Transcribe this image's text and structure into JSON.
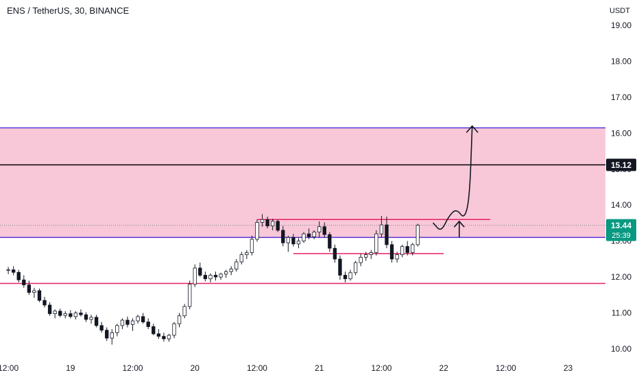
{
  "header": {
    "title": "ENS / TetherUS, 30, BINANCE"
  },
  "chart_data": {
    "type": "candlestick",
    "y_axis": {
      "unit": "USDT",
      "ticks": [
        10.0,
        11.0,
        12.0,
        13.0,
        14.0,
        15.0,
        16.0,
        17.0,
        18.0,
        19.0
      ],
      "tick_labels": [
        "10.00",
        "11.00",
        "12.00",
        "13.00",
        "14.00",
        "15.00",
        "16.00",
        "17.00",
        "18.00",
        "19.00"
      ],
      "range": [
        9.9,
        19.4
      ]
    },
    "x_axis": {
      "ticks": [
        {
          "t": 0,
          "label": "12:00"
        },
        {
          "t": 12,
          "label": "19"
        },
        {
          "t": 24,
          "label": "12:00"
        },
        {
          "t": 36,
          "label": "20"
        },
        {
          "t": 48,
          "label": "12:00"
        },
        {
          "t": 60,
          "label": "21"
        },
        {
          "t": 72,
          "label": "12:00"
        },
        {
          "t": 84,
          "label": "22"
        },
        {
          "t": 96,
          "label": "12:00"
        },
        {
          "t": 108,
          "label": "23"
        }
      ],
      "range": [
        -1.6,
        115.2
      ]
    },
    "candles": [
      {
        "o": 12.18,
        "h": 12.28,
        "l": 12.08,
        "c": 12.2
      },
      {
        "o": 12.2,
        "h": 12.3,
        "l": 12.05,
        "c": 12.13
      },
      {
        "o": 12.13,
        "h": 12.2,
        "l": 11.85,
        "c": 11.92
      },
      {
        "o": 11.92,
        "h": 12.05,
        "l": 11.7,
        "c": 11.78
      },
      {
        "o": 11.78,
        "h": 11.9,
        "l": 11.5,
        "c": 11.57
      },
      {
        "o": 11.57,
        "h": 11.7,
        "l": 11.42,
        "c": 11.62
      },
      {
        "o": 11.62,
        "h": 11.68,
        "l": 11.3,
        "c": 11.35
      },
      {
        "o": 11.35,
        "h": 11.45,
        "l": 11.15,
        "c": 11.22
      },
      {
        "o": 11.22,
        "h": 11.3,
        "l": 10.92,
        "c": 10.98
      },
      {
        "o": 10.98,
        "h": 11.1,
        "l": 10.85,
        "c": 11.05
      },
      {
        "o": 11.05,
        "h": 11.12,
        "l": 10.88,
        "c": 10.93
      },
      {
        "o": 10.93,
        "h": 11.05,
        "l": 10.85,
        "c": 10.98
      },
      {
        "o": 10.98,
        "h": 11.08,
        "l": 10.85,
        "c": 10.9
      },
      {
        "o": 10.9,
        "h": 11.05,
        "l": 10.82,
        "c": 11.0
      },
      {
        "o": 11.0,
        "h": 11.1,
        "l": 10.9,
        "c": 10.95
      },
      {
        "o": 10.95,
        "h": 11.02,
        "l": 10.75,
        "c": 10.82
      },
      {
        "o": 10.82,
        "h": 10.95,
        "l": 10.7,
        "c": 10.88
      },
      {
        "o": 10.88,
        "h": 10.95,
        "l": 10.6,
        "c": 10.65
      },
      {
        "o": 10.65,
        "h": 10.75,
        "l": 10.45,
        "c": 10.52
      },
      {
        "o": 10.52,
        "h": 10.6,
        "l": 10.22,
        "c": 10.3
      },
      {
        "o": 10.3,
        "h": 10.55,
        "l": 10.12,
        "c": 10.45
      },
      {
        "o": 10.45,
        "h": 10.7,
        "l": 10.35,
        "c": 10.65
      },
      {
        "o": 10.65,
        "h": 10.85,
        "l": 10.55,
        "c": 10.8
      },
      {
        "o": 10.8,
        "h": 10.9,
        "l": 10.6,
        "c": 10.68
      },
      {
        "o": 10.68,
        "h": 10.85,
        "l": 10.5,
        "c": 10.78
      },
      {
        "o": 10.78,
        "h": 10.95,
        "l": 10.7,
        "c": 10.9
      },
      {
        "o": 10.9,
        "h": 11.0,
        "l": 10.7,
        "c": 10.75
      },
      {
        "o": 10.75,
        "h": 10.85,
        "l": 10.55,
        "c": 10.62
      },
      {
        "o": 10.62,
        "h": 10.7,
        "l": 10.38,
        "c": 10.42
      },
      {
        "o": 10.42,
        "h": 10.55,
        "l": 10.28,
        "c": 10.35
      },
      {
        "o": 10.35,
        "h": 10.45,
        "l": 10.2,
        "c": 10.28
      },
      {
        "o": 10.28,
        "h": 10.42,
        "l": 10.2,
        "c": 10.38
      },
      {
        "o": 10.38,
        "h": 10.75,
        "l": 10.3,
        "c": 10.7
      },
      {
        "o": 10.7,
        "h": 11.0,
        "l": 10.6,
        "c": 10.92
      },
      {
        "o": 10.92,
        "h": 11.25,
        "l": 10.85,
        "c": 11.18
      },
      {
        "o": 11.18,
        "h": 11.9,
        "l": 11.1,
        "c": 11.8
      },
      {
        "o": 11.8,
        "h": 12.35,
        "l": 11.72,
        "c": 12.25
      },
      {
        "o": 12.25,
        "h": 12.4,
        "l": 12.0,
        "c": 12.05
      },
      {
        "o": 12.05,
        "h": 12.15,
        "l": 11.88,
        "c": 11.95
      },
      {
        "o": 11.95,
        "h": 12.1,
        "l": 11.85,
        "c": 12.05
      },
      {
        "o": 12.05,
        "h": 12.15,
        "l": 11.9,
        "c": 12.0
      },
      {
        "o": 12.0,
        "h": 12.12,
        "l": 11.92,
        "c": 12.08
      },
      {
        "o": 12.08,
        "h": 12.2,
        "l": 11.98,
        "c": 12.15
      },
      {
        "o": 12.15,
        "h": 12.3,
        "l": 12.05,
        "c": 12.22
      },
      {
        "o": 12.22,
        "h": 12.5,
        "l": 12.15,
        "c": 12.42
      },
      {
        "o": 12.42,
        "h": 12.7,
        "l": 12.35,
        "c": 12.62
      },
      {
        "o": 12.62,
        "h": 12.75,
        "l": 12.5,
        "c": 12.68
      },
      {
        "o": 12.68,
        "h": 13.15,
        "l": 12.6,
        "c": 13.05
      },
      {
        "o": 13.05,
        "h": 13.6,
        "l": 12.98,
        "c": 13.52
      },
      {
        "o": 13.52,
        "h": 13.75,
        "l": 13.4,
        "c": 13.6
      },
      {
        "o": 13.6,
        "h": 13.68,
        "l": 13.35,
        "c": 13.42
      },
      {
        "o": 13.42,
        "h": 13.62,
        "l": 13.3,
        "c": 13.55
      },
      {
        "o": 13.55,
        "h": 13.6,
        "l": 13.25,
        "c": 13.3
      },
      {
        "o": 13.3,
        "h": 13.42,
        "l": 12.85,
        "c": 12.95
      },
      {
        "o": 12.95,
        "h": 13.15,
        "l": 12.7,
        "c": 13.1
      },
      {
        "o": 13.1,
        "h": 13.2,
        "l": 12.85,
        "c": 12.92
      },
      {
        "o": 12.92,
        "h": 13.08,
        "l": 12.8,
        "c": 13.0
      },
      {
        "o": 13.0,
        "h": 13.25,
        "l": 12.95,
        "c": 13.2
      },
      {
        "o": 13.2,
        "h": 13.35,
        "l": 13.05,
        "c": 13.12
      },
      {
        "o": 13.12,
        "h": 13.3,
        "l": 13.05,
        "c": 13.25
      },
      {
        "o": 13.25,
        "h": 13.55,
        "l": 13.1,
        "c": 13.4
      },
      {
        "o": 13.4,
        "h": 13.52,
        "l": 13.1,
        "c": 13.18
      },
      {
        "o": 13.18,
        "h": 13.25,
        "l": 12.7,
        "c": 12.8
      },
      {
        "o": 12.8,
        "h": 12.9,
        "l": 12.4,
        "c": 12.5
      },
      {
        "o": 12.5,
        "h": 12.6,
        "l": 11.92,
        "c": 12.05
      },
      {
        "o": 12.05,
        "h": 12.15,
        "l": 11.85,
        "c": 11.95
      },
      {
        "o": 11.95,
        "h": 12.2,
        "l": 11.9,
        "c": 12.12
      },
      {
        "o": 12.12,
        "h": 12.45,
        "l": 12.05,
        "c": 12.4
      },
      {
        "o": 12.4,
        "h": 12.65,
        "l": 12.3,
        "c": 12.55
      },
      {
        "o": 12.55,
        "h": 12.7,
        "l": 12.45,
        "c": 12.62
      },
      {
        "o": 12.62,
        "h": 12.75,
        "l": 12.5,
        "c": 12.68
      },
      {
        "o": 12.68,
        "h": 13.3,
        "l": 12.6,
        "c": 13.2
      },
      {
        "o": 13.2,
        "h": 13.7,
        "l": 13.1,
        "c": 13.45
      },
      {
        "o": 13.45,
        "h": 13.68,
        "l": 12.8,
        "c": 12.9
      },
      {
        "o": 12.9,
        "h": 13.0,
        "l": 12.4,
        "c": 12.5
      },
      {
        "o": 12.5,
        "h": 12.7,
        "l": 12.4,
        "c": 12.62
      },
      {
        "o": 12.62,
        "h": 12.9,
        "l": 12.55,
        "c": 12.85
      },
      {
        "o": 12.85,
        "h": 13.0,
        "l": 12.6,
        "c": 12.68
      },
      {
        "o": 12.68,
        "h": 12.95,
        "l": 12.6,
        "c": 12.9
      },
      {
        "o": 12.9,
        "h": 13.48,
        "l": 12.85,
        "c": 13.44
      }
    ],
    "candle_colors": {
      "up": "#089981",
      "down": "#f23645"
    },
    "zone": {
      "from": 13.1,
      "to": 16.15,
      "fill": "#f8c8d8",
      "border": "#5b34d8"
    },
    "levels": [
      {
        "price": 15.12,
        "color": "#000000",
        "t_from": -1.6,
        "t_to": 115.2
      },
      {
        "price": 13.6,
        "color": "#e91e63",
        "t_from": 48,
        "t_to": 93
      },
      {
        "price": 12.65,
        "color": "#e91e63",
        "t_from": 55,
        "t_to": 84
      },
      {
        "price": 11.82,
        "color": "#e91e63",
        "t_from": -1.6,
        "t_to": 115.2
      }
    ],
    "arrow_path": [
      {
        "t": 82.0,
        "p": 13.5
      },
      {
        "t": 83.5,
        "p": 13.25
      },
      {
        "t": 85.0,
        "p": 13.7
      },
      {
        "t": 86.5,
        "p": 13.9
      },
      {
        "t": 88.0,
        "p": 13.6
      },
      {
        "t": 89.0,
        "p": 14.2
      },
      {
        "t": 89.5,
        "p": 16.2
      }
    ],
    "small_arrow": {
      "t": 87.0,
      "from": 13.1,
      "to": 13.55
    },
    "last_price": {
      "value": "13.44",
      "countdown": "25:39",
      "price": 13.44,
      "color": "#089981"
    },
    "level_label": {
      "value": "15.12",
      "price": 15.12,
      "color": "#131722"
    }
  }
}
